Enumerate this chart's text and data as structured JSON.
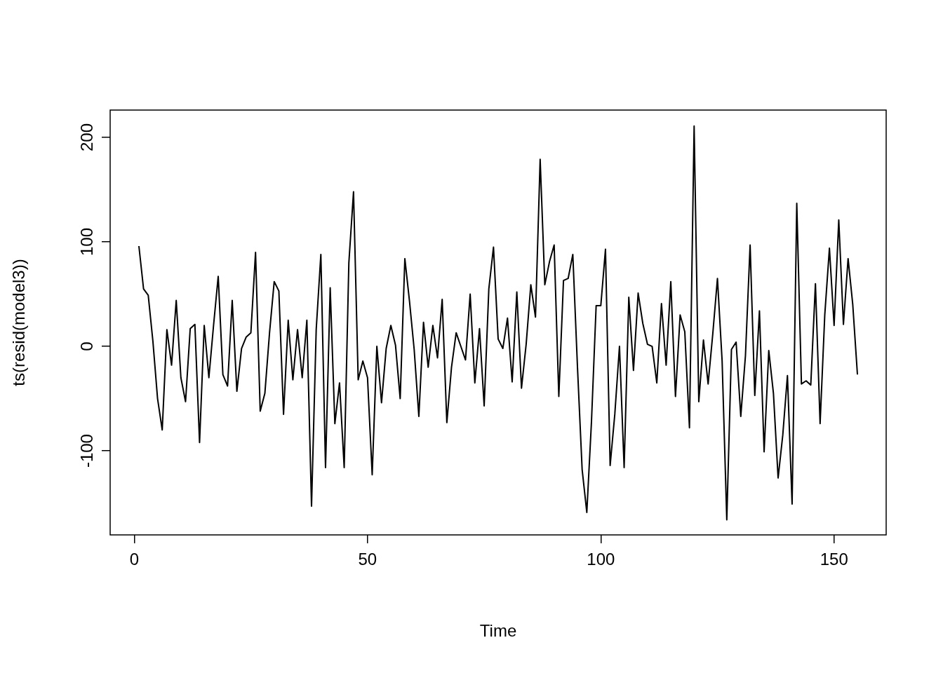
{
  "chart_data": {
    "type": "line",
    "xlabel": "Time",
    "ylabel": "ts(resid(model3))",
    "x": [
      1,
      2,
      3,
      4,
      5,
      6,
      7,
      8,
      9,
      10,
      11,
      12,
      13,
      14,
      15,
      16,
      17,
      18,
      19,
      20,
      21,
      22,
      23,
      24,
      25,
      26,
      27,
      28,
      29,
      30,
      31,
      32,
      33,
      34,
      35,
      36,
      37,
      38,
      39,
      40,
      41,
      42,
      43,
      44,
      45,
      46,
      47,
      48,
      49,
      50,
      51,
      52,
      53,
      54,
      55,
      56,
      57,
      58,
      59,
      60,
      61,
      62,
      63,
      64,
      65,
      66,
      67,
      68,
      69,
      70,
      71,
      72,
      73,
      74,
      75,
      76,
      77,
      78,
      79,
      80,
      81,
      82,
      83,
      84,
      85,
      86,
      87,
      88,
      89,
      90,
      91,
      92,
      93,
      94,
      95,
      96,
      97,
      98,
      99,
      100,
      101,
      102,
      103,
      104,
      105,
      106,
      107,
      108,
      109,
      110,
      111,
      112,
      113,
      114,
      115,
      116,
      117,
      118,
      119,
      120,
      121,
      122,
      123,
      124,
      125,
      126,
      127,
      128,
      129,
      130,
      131,
      132,
      133,
      134,
      135,
      136,
      137,
      138,
      139,
      140,
      141,
      142,
      143,
      144,
      145,
      146,
      147,
      148,
      149,
      150,
      151,
      152,
      153,
      154,
      155
    ],
    "series": [
      {
        "color": "#000000",
        "values": [
          96,
          55,
          49,
          5,
          -50,
          -80,
          16,
          -18,
          44,
          -30,
          -53,
          17,
          21,
          -92,
          20,
          -30,
          20,
          67,
          -27,
          -38,
          44,
          -43,
          -2,
          9,
          13,
          90,
          -62,
          -45,
          13,
          62,
          53,
          -65,
          25,
          -32,
          16,
          -30,
          25,
          -153,
          16,
          88,
          -116,
          56,
          -74,
          -35,
          -116,
          80,
          148,
          -32,
          -14,
          -30,
          -123,
          0,
          -54,
          -2,
          20,
          1,
          -50,
          84,
          43,
          -3,
          -67,
          23,
          -20,
          20,
          -11,
          45,
          -73,
          -20,
          13,
          0,
          -13,
          50,
          -35,
          17,
          -57,
          55,
          95,
          7,
          -2,
          27,
          -34,
          52,
          -40,
          2,
          59,
          28,
          179,
          59,
          81,
          97,
          -48,
          63,
          65,
          88,
          -20,
          -118,
          -159,
          -72,
          39,
          39,
          93,
          -114,
          -65,
          0,
          -116,
          47,
          -23,
          51,
          22,
          2,
          0,
          -35,
          41,
          -18,
          62,
          -48,
          30,
          14,
          -78,
          211,
          -53,
          6,
          -36,
          12,
          65,
          -14,
          -166,
          -3,
          4,
          -67,
          -9,
          97,
          -47,
          34,
          -101,
          -4,
          -45,
          -126,
          -85,
          -28,
          -151,
          137,
          -36,
          -33,
          -37,
          60,
          -74,
          30,
          94,
          20,
          121,
          21,
          84,
          40,
          -27
        ]
      }
    ],
    "xlim": [
      -5.16,
      161.16
    ],
    "ylim": [
      -180.5,
      226.2
    ],
    "xticks": [
      0,
      50,
      100,
      150
    ],
    "yticks": [
      -100,
      0,
      100,
      200
    ]
  }
}
